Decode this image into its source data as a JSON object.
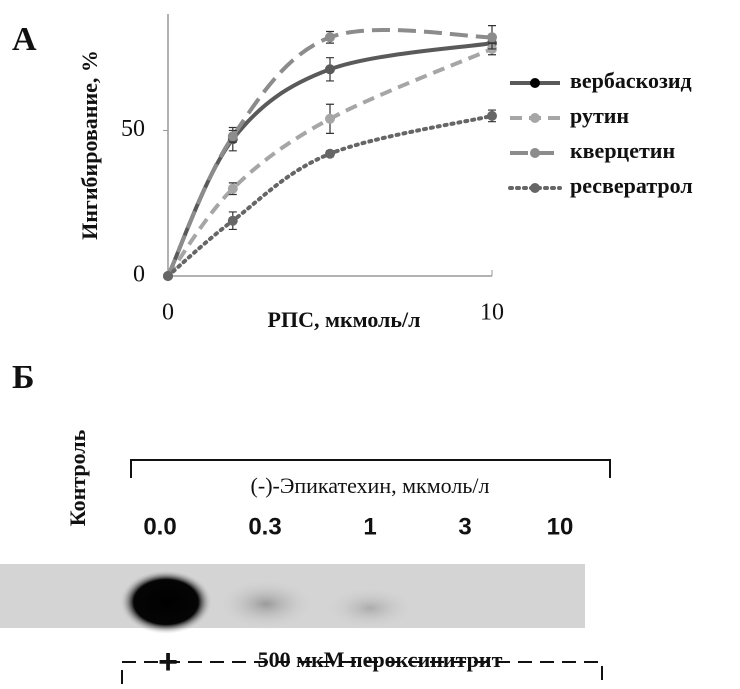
{
  "chart_data": {
    "type": "line",
    "panel": "А",
    "x_label": "РПС, мкмоль/л",
    "y_label": "Ингибирование, %",
    "x": [
      0,
      2,
      5,
      10
    ],
    "xlim": [
      0,
      10
    ],
    "xticks": [
      0,
      10
    ],
    "ylim": [
      0,
      90
    ],
    "yticks": [
      0,
      50
    ],
    "legend": "right",
    "series": [
      {
        "name": "вербаскозид",
        "color": "#5a5a5a",
        "dash": "solid",
        "values": [
          0,
          47,
          71,
          80
        ],
        "errors": [
          null,
          4,
          4,
          2
        ]
      },
      {
        "name": "рутин",
        "color": "#a6a6a6",
        "dash": "dashed",
        "values": [
          0,
          30,
          54,
          78
        ],
        "errors": [
          null,
          2,
          5,
          2
        ]
      },
      {
        "name": "кверцетин",
        "color": "#8c8c8c",
        "dash": "longdash",
        "values": [
          0,
          48,
          82,
          82
        ],
        "errors": [
          null,
          2,
          2,
          4
        ]
      },
      {
        "name": "ресвератрол",
        "color": "#666666",
        "dash": "dotted",
        "values": [
          0,
          19,
          42,
          55
        ],
        "errors": [
          null,
          3,
          1,
          2
        ]
      }
    ]
  },
  "panel_b": {
    "panel": "Б",
    "control": "Контроль",
    "group_label": "(-)-Эпикатехин, мкмоль/л",
    "lanes": [
      "0.0",
      "0.3",
      "1",
      "3",
      "10"
    ],
    "plus": "+",
    "treatment": "500 мкМ пероксинитрит"
  }
}
